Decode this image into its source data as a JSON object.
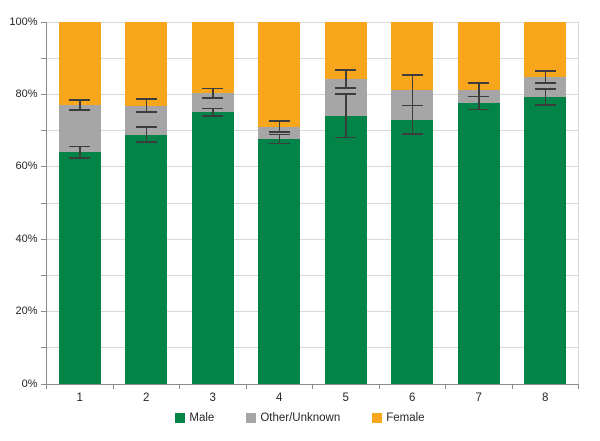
{
  "chart_data": {
    "type": "bar",
    "subtype": "stacked-100-percent-with-error-bars",
    "title": "",
    "categories": [
      "1",
      "2",
      "3",
      "4",
      "5",
      "6",
      "7",
      "8"
    ],
    "series": [
      {
        "name": "Male",
        "color": "#028449",
        "values": [
          64.0,
          68.9,
          75.1,
          67.7,
          74.1,
          73.0,
          77.6,
          79.3
        ]
      },
      {
        "name": "Other/Unknown",
        "color": "#A6A6A6",
        "values": [
          13.1,
          8.0,
          5.2,
          3.4,
          10.2,
          8.2,
          3.7,
          5.5
        ]
      },
      {
        "name": "Female",
        "color": "#F8A61B",
        "values": [
          22.9,
          23.1,
          19.7,
          28.9,
          15.7,
          18.8,
          18.7,
          15.2
        ]
      }
    ],
    "error_bars": [
      {
        "at": "male-top",
        "centers": [
          64.0,
          68.9,
          75.1,
          67.7,
          74.1,
          73.0,
          77.6,
          79.3
        ],
        "half_widths": [
          1.6,
          2.1,
          1.0,
          1.2,
          6.0,
          4.0,
          1.8,
          2.2
        ]
      },
      {
        "at": "other-top",
        "centers": [
          77.1,
          76.9,
          80.3,
          71.1,
          84.3,
          81.2,
          81.3,
          84.8
        ],
        "half_widths": [
          1.4,
          1.8,
          1.3,
          1.5,
          2.5,
          4.2,
          1.9,
          1.6
        ]
      }
    ],
    "y_axis": {
      "min": 0,
      "max": 100,
      "unit": "%",
      "major_step": 20,
      "minor_step": 10,
      "tick_labels": [
        "0%",
        "20%",
        "40%",
        "60%",
        "80%",
        "100%"
      ]
    },
    "x_axis": {
      "tick_labels": [
        "1",
        "2",
        "3",
        "4",
        "5",
        "6",
        "7",
        "8"
      ]
    },
    "legend": {
      "position": "bottom",
      "entries": [
        "Male",
        "Other/Unknown",
        "Female"
      ]
    },
    "grid": true,
    "ylim": [
      0,
      100
    ]
  },
  "colors": {
    "male": "#028449",
    "other_unknown": "#A6A6A6",
    "female": "#F8A61B",
    "gridline": "#D9D9D9",
    "axis": "#8C8C8C",
    "error_bar": "#3C3C3C",
    "text": "#262626",
    "background": "#FFFFFF"
  }
}
